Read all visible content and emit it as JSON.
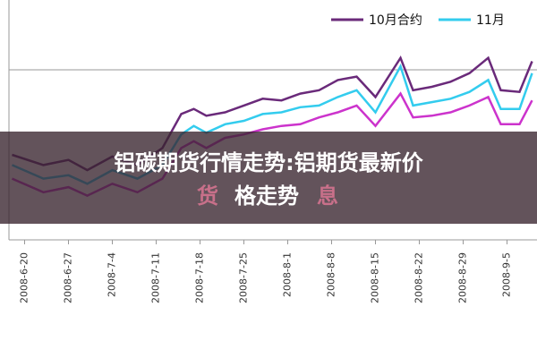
{
  "chart_data": {
    "type": "line",
    "x": [
      -2,
      3,
      7,
      10,
      14,
      18,
      22,
      25,
      27,
      29,
      32,
      35,
      38,
      41,
      44,
      47,
      50,
      53,
      56,
      60,
      62,
      65,
      68,
      71,
      74,
      76,
      79,
      81
    ],
    "series": [
      {
        "name": "10月合约",
        "color": "#6a2a7a",
        "values": [
          50,
          44,
          47,
          41,
          49,
          44,
          54,
          74,
          77,
          73,
          75,
          79,
          83,
          82,
          86,
          88,
          94,
          96,
          84,
          107,
          88,
          90,
          93,
          98,
          107,
          88,
          87,
          105
        ]
      },
      {
        "name": "11月",
        "color": "#33ccee",
        "values": [
          44,
          36,
          38,
          33,
          41,
          36,
          44,
          62,
          67,
          63,
          68,
          70,
          74,
          75,
          78,
          79,
          84,
          88,
          75,
          102,
          79,
          81,
          83,
          87,
          94,
          77,
          77,
          98
        ]
      },
      {
        "color": "#cc33cc",
        "values": [
          36,
          28,
          31,
          26,
          33,
          28,
          36,
          54,
          58,
          54,
          60,
          62,
          65,
          67,
          68,
          72,
          75,
          79,
          67,
          86,
          72,
          73,
          75,
          79,
          84,
          68,
          68,
          82
        ]
      }
    ],
    "xlim": [
      -2.5,
      81.5
    ],
    "xticks": [
      {
        "value": 0,
        "label": "2008-6-20"
      },
      {
        "value": 7,
        "label": "2008-6-27"
      },
      {
        "value": 14,
        "label": "2008-7-4"
      },
      {
        "value": 21,
        "label": "2008-7-11"
      },
      {
        "value": 28,
        "label": "2008-7-18"
      },
      {
        "value": 35,
        "label": "2008-7-25"
      },
      {
        "value": 42,
        "label": "2008-8-1"
      },
      {
        "value": 49,
        "label": "2008-8-8"
      },
      {
        "value": 56,
        "label": "2008-8-15"
      },
      {
        "value": 63,
        "label": "2008-8-22"
      },
      {
        "value": 70,
        "label": "2008-8-29"
      },
      {
        "value": 77,
        "label": "2008-9-5"
      }
    ],
    "ylim": [
      0,
      110
    ]
  },
  "banner": {
    "title_line1": "铝碳期货行情走势:铝期货最新价",
    "title_line2": "格走势",
    "faded_left": "货",
    "faded_right": "息"
  }
}
